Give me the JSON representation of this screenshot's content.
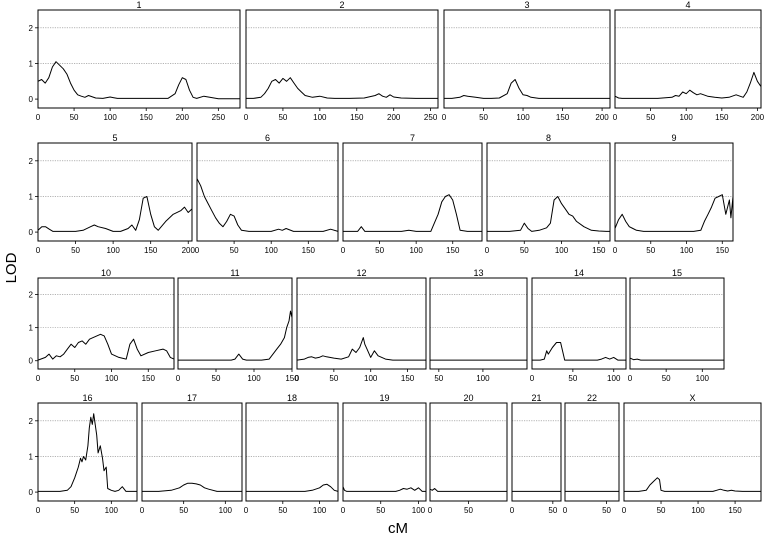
{
  "chart_data": {
    "type": "line",
    "xlabel": "cM",
    "ylabel": "LOD",
    "ylim": [
      -0.25,
      2.5
    ],
    "y_ticks": [
      0,
      1,
      2
    ],
    "grid": "horizontal dotted at LOD 1 and 2",
    "panels": [
      {
        "title": "1",
        "xlim": [
          0,
          280
        ],
        "x_ticks": [
          50,
          100,
          150,
          200,
          250
        ],
        "x": [
          0,
          5,
          10,
          15,
          20,
          25,
          30,
          35,
          40,
          45,
          50,
          55,
          60,
          65,
          70,
          80,
          90,
          100,
          105,
          110,
          120,
          140,
          160,
          180,
          190,
          195,
          200,
          205,
          210,
          215,
          220,
          230,
          250,
          270,
          280
        ],
        "y": [
          0.5,
          0.55,
          0.45,
          0.6,
          0.9,
          1.05,
          0.95,
          0.85,
          0.7,
          0.45,
          0.25,
          0.12,
          0.08,
          0.05,
          0.1,
          0.03,
          0.02,
          0.06,
          0.04,
          0.02,
          0.02,
          0.02,
          0.02,
          0.02,
          0.15,
          0.4,
          0.6,
          0.55,
          0.25,
          0.05,
          0.02,
          0.08,
          0.01,
          0.01,
          0.01
        ]
      },
      {
        "title": "2",
        "xlim": [
          0,
          260
        ],
        "x_ticks": [
          50,
          100,
          150,
          200,
          250
        ],
        "x": [
          0,
          10,
          20,
          25,
          30,
          35,
          40,
          45,
          50,
          55,
          60,
          65,
          70,
          75,
          80,
          90,
          100,
          110,
          120,
          140,
          160,
          175,
          180,
          185,
          190,
          195,
          200,
          210,
          230,
          250,
          260
        ],
        "y": [
          0.02,
          0.02,
          0.05,
          0.15,
          0.3,
          0.5,
          0.55,
          0.45,
          0.58,
          0.5,
          0.6,
          0.45,
          0.3,
          0.2,
          0.1,
          0.05,
          0.08,
          0.03,
          0.02,
          0.02,
          0.03,
          0.1,
          0.15,
          0.08,
          0.05,
          0.12,
          0.06,
          0.03,
          0.02,
          0.02,
          0.02
        ]
      },
      {
        "title": "3",
        "xlim": [
          0,
          210
        ],
        "x_ticks": [
          50,
          100,
          150,
          200
        ],
        "x": [
          0,
          10,
          20,
          25,
          30,
          40,
          50,
          60,
          70,
          80,
          85,
          90,
          95,
          100,
          105,
          110,
          120,
          140,
          160,
          180,
          200,
          210
        ],
        "y": [
          0.02,
          0.02,
          0.05,
          0.1,
          0.08,
          0.05,
          0.02,
          0.02,
          0.03,
          0.15,
          0.45,
          0.55,
          0.3,
          0.12,
          0.1,
          0.05,
          0.02,
          0.02,
          0.02,
          0.02,
          0.02,
          0.02
        ]
      },
      {
        "title": "4",
        "xlim": [
          0,
          205
        ],
        "x_ticks": [
          50,
          100,
          150,
          200
        ],
        "x": [
          0,
          5,
          10,
          20,
          40,
          60,
          80,
          85,
          90,
          95,
          100,
          105,
          110,
          115,
          120,
          130,
          140,
          150,
          160,
          170,
          180,
          185,
          190,
          195,
          200,
          205
        ],
        "y": [
          0.08,
          0.03,
          0.02,
          0.02,
          0.02,
          0.02,
          0.05,
          0.1,
          0.08,
          0.2,
          0.15,
          0.25,
          0.18,
          0.12,
          0.15,
          0.08,
          0.05,
          0.03,
          0.05,
          0.12,
          0.05,
          0.2,
          0.45,
          0.75,
          0.5,
          0.35
        ]
      },
      {
        "title": "5",
        "xlim": [
          0,
          205
        ],
        "x_ticks": [
          50,
          100,
          150,
          200
        ],
        "x": [
          0,
          5,
          10,
          15,
          20,
          30,
          50,
          60,
          70,
          75,
          80,
          90,
          100,
          110,
          120,
          125,
          130,
          135,
          140,
          145,
          150,
          155,
          160,
          170,
          180,
          190,
          195,
          200,
          205
        ],
        "y": [
          0.05,
          0.15,
          0.15,
          0.08,
          0.02,
          0.02,
          0.02,
          0.05,
          0.15,
          0.2,
          0.15,
          0.1,
          0.02,
          0.02,
          0.1,
          0.2,
          0.05,
          0.35,
          0.95,
          1.0,
          0.5,
          0.15,
          0.05,
          0.3,
          0.5,
          0.6,
          0.7,
          0.55,
          0.65
        ]
      },
      {
        "title": "6",
        "xlim": [
          0,
          190
        ],
        "x_ticks": [
          50,
          100,
          150
        ],
        "x": [
          0,
          5,
          10,
          15,
          20,
          25,
          30,
          35,
          40,
          45,
          50,
          55,
          60,
          70,
          80,
          100,
          110,
          115,
          120,
          130,
          150,
          170,
          180,
          190
        ],
        "y": [
          1.5,
          1.3,
          1.0,
          0.8,
          0.6,
          0.4,
          0.25,
          0.15,
          0.3,
          0.5,
          0.45,
          0.2,
          0.05,
          0.02,
          0.02,
          0.02,
          0.08,
          0.05,
          0.1,
          0.02,
          0.02,
          0.02,
          0.08,
          0.02
        ]
      },
      {
        "title": "7",
        "xlim": [
          0,
          190
        ],
        "x_ticks": [
          50,
          100,
          150
        ],
        "x": [
          0,
          10,
          20,
          25,
          30,
          40,
          60,
          80,
          90,
          100,
          110,
          120,
          130,
          135,
          140,
          145,
          150,
          155,
          160,
          170,
          180,
          190
        ],
        "y": [
          0.02,
          0.02,
          0.02,
          0.15,
          0.02,
          0.02,
          0.02,
          0.02,
          0.05,
          0.02,
          0.02,
          0.02,
          0.5,
          0.85,
          1.0,
          1.05,
          0.9,
          0.5,
          0.05,
          0.02,
          0.02,
          0.02
        ]
      },
      {
        "title": "8",
        "xlim": [
          0,
          165
        ],
        "x_ticks": [
          50,
          100,
          150
        ],
        "x": [
          0,
          10,
          30,
          45,
          50,
          55,
          60,
          70,
          80,
          85,
          90,
          95,
          100,
          105,
          110,
          115,
          120,
          130,
          140,
          150,
          160,
          165
        ],
        "y": [
          0.02,
          0.02,
          0.02,
          0.05,
          0.25,
          0.1,
          0.02,
          0.05,
          0.12,
          0.25,
          0.9,
          1.0,
          0.8,
          0.65,
          0.5,
          0.45,
          0.3,
          0.15,
          0.05,
          0.03,
          0.02,
          0.02
        ]
      },
      {
        "title": "9",
        "xlim": [
          0,
          165
        ],
        "x_ticks": [
          50,
          100,
          150
        ],
        "x": [
          0,
          5,
          10,
          15,
          20,
          25,
          30,
          40,
          60,
          80,
          100,
          110,
          120,
          125,
          130,
          135,
          140,
          145,
          150,
          155,
          160,
          162,
          165
        ],
        "y": [
          0.1,
          0.35,
          0.5,
          0.3,
          0.15,
          0.1,
          0.05,
          0.02,
          0.02,
          0.02,
          0.02,
          0.02,
          0.05,
          0.3,
          0.5,
          0.7,
          0.95,
          1.0,
          1.05,
          0.5,
          0.9,
          0.4,
          1.0
        ]
      },
      {
        "title": "10",
        "xlim": [
          0,
          185
        ],
        "x_ticks": [
          50,
          100,
          150
        ],
        "x": [
          0,
          10,
          15,
          20,
          25,
          30,
          35,
          40,
          45,
          50,
          55,
          60,
          65,
          70,
          75,
          80,
          85,
          90,
          95,
          100,
          110,
          120,
          125,
          130,
          135,
          140,
          150,
          160,
          170,
          175,
          180,
          185
        ],
        "y": [
          0.02,
          0.1,
          0.2,
          0.05,
          0.15,
          0.12,
          0.2,
          0.35,
          0.5,
          0.4,
          0.55,
          0.6,
          0.5,
          0.65,
          0.7,
          0.75,
          0.8,
          0.75,
          0.5,
          0.2,
          0.1,
          0.05,
          0.5,
          0.65,
          0.35,
          0.15,
          0.25,
          0.3,
          0.35,
          0.3,
          0.1,
          0.05
        ]
      },
      {
        "title": "11",
        "xlim": [
          0,
          150
        ],
        "x_ticks": [
          50,
          100,
          150
        ],
        "x": [
          0,
          20,
          40,
          60,
          70,
          75,
          80,
          85,
          90,
          100,
          110,
          120,
          125,
          130,
          135,
          140,
          143,
          146,
          148,
          150
        ],
        "y": [
          0.02,
          0.02,
          0.02,
          0.02,
          0.02,
          0.05,
          0.2,
          0.05,
          0.02,
          0.02,
          0.02,
          0.05,
          0.2,
          0.35,
          0.5,
          0.7,
          1.0,
          1.2,
          1.5,
          1.3
        ]
      },
      {
        "title": "12",
        "xlim": [
          0,
          175
        ],
        "x_ticks": [
          50,
          100,
          150
        ],
        "x": [
          0,
          10,
          15,
          20,
          25,
          30,
          35,
          40,
          50,
          60,
          70,
          75,
          80,
          85,
          90,
          92,
          95,
          100,
          105,
          110,
          115,
          120,
          130,
          150,
          170,
          175
        ],
        "y": [
          0.02,
          0.05,
          0.1,
          0.12,
          0.08,
          0.1,
          0.15,
          0.12,
          0.08,
          0.05,
          0.12,
          0.35,
          0.25,
          0.4,
          0.7,
          0.5,
          0.35,
          0.1,
          0.3,
          0.15,
          0.1,
          0.05,
          0.02,
          0.02,
          0.02,
          0.02
        ]
      },
      {
        "title": "13",
        "xlim": [
          40,
          150
        ],
        "x_ticks": [
          50,
          100
        ],
        "x": [
          40,
          60,
          80,
          100,
          120,
          150
        ],
        "y": [
          0.02,
          0.02,
          0.02,
          0.02,
          0.02,
          0.02
        ]
      },
      {
        "title": "14",
        "xlim": [
          0,
          115
        ],
        "x_ticks": [
          50,
          100
        ],
        "x": [
          0,
          10,
          15,
          18,
          20,
          25,
          30,
          35,
          40,
          45,
          50,
          60,
          70,
          80,
          85,
          90,
          95,
          100,
          105,
          110,
          115
        ],
        "y": [
          0.02,
          0.02,
          0.05,
          0.3,
          0.2,
          0.4,
          0.55,
          0.55,
          0.02,
          0.02,
          0.02,
          0.02,
          0.02,
          0.02,
          0.05,
          0.1,
          0.05,
          0.1,
          0.02,
          0.02,
          0.02
        ]
      },
      {
        "title": "15",
        "xlim": [
          0,
          130
        ],
        "x_ticks": [
          50,
          100
        ],
        "x": [
          0,
          5,
          10,
          15,
          20,
          40,
          60,
          80,
          100,
          120,
          130
        ],
        "y": [
          0.08,
          0.03,
          0.05,
          0.02,
          0.02,
          0.02,
          0.02,
          0.02,
          0.02,
          0.02,
          0.02
        ]
      },
      {
        "title": "16",
        "xlim": [
          0,
          135
        ],
        "x_ticks": [
          50,
          100
        ],
        "x": [
          0,
          20,
          30,
          40,
          45,
          50,
          55,
          58,
          60,
          62,
          65,
          68,
          70,
          72,
          74,
          76,
          78,
          80,
          82,
          85,
          88,
          90,
          93,
          95,
          100,
          105,
          110,
          115,
          120,
          135
        ],
        "y": [
          0.02,
          0.02,
          0.02,
          0.05,
          0.15,
          0.4,
          0.7,
          0.95,
          0.85,
          1.0,
          0.9,
          1.3,
          1.8,
          2.1,
          1.9,
          2.2,
          1.9,
          1.6,
          1.1,
          1.3,
          0.95,
          0.6,
          0.7,
          0.1,
          0.05,
          0.02,
          0.05,
          0.15,
          0.02,
          0.02
        ]
      },
      {
        "title": "17",
        "xlim": [
          0,
          120
        ],
        "x_ticks": [
          50,
          100
        ],
        "x": [
          0,
          20,
          35,
          45,
          50,
          55,
          60,
          65,
          70,
          75,
          80,
          90,
          100,
          110,
          120
        ],
        "y": [
          0.02,
          0.02,
          0.05,
          0.12,
          0.2,
          0.25,
          0.25,
          0.23,
          0.2,
          0.12,
          0.08,
          0.02,
          0.02,
          0.02,
          0.02
        ]
      },
      {
        "title": "18",
        "xlim": [
          0,
          125
        ],
        "x_ticks": [
          50,
          100
        ],
        "x": [
          0,
          20,
          40,
          60,
          80,
          90,
          100,
          105,
          110,
          115,
          120,
          125
        ],
        "y": [
          0.02,
          0.02,
          0.02,
          0.02,
          0.02,
          0.05,
          0.12,
          0.2,
          0.22,
          0.15,
          0.05,
          0.02
        ]
      },
      {
        "title": "19",
        "xlim": [
          0,
          110
        ],
        "x_ticks": [
          50,
          100
        ],
        "x": [
          0,
          2,
          5,
          20,
          40,
          60,
          70,
          75,
          80,
          85,
          90,
          95,
          100,
          105,
          110
        ],
        "y": [
          0.15,
          0.05,
          0.02,
          0.02,
          0.02,
          0.02,
          0.02,
          0.05,
          0.1,
          0.08,
          0.12,
          0.05,
          0.12,
          0.02,
          0.02
        ]
      },
      {
        "title": "20",
        "xlim": [
          0,
          100
        ],
        "x_ticks": [
          50
        ],
        "x": [
          0,
          3,
          6,
          10,
          20,
          40,
          60,
          80,
          100
        ],
        "y": [
          0.08,
          0.05,
          0.1,
          0.02,
          0.02,
          0.02,
          0.02,
          0.02,
          0.02
        ]
      },
      {
        "title": "21",
        "xlim": [
          0,
          60
        ],
        "x_ticks": [
          50
        ],
        "x": [
          0,
          20,
          40,
          60
        ],
        "y": [
          0.02,
          0.02,
          0.02,
          0.02
        ]
      },
      {
        "title": "22",
        "xlim": [
          0,
          65
        ],
        "x_ticks": [
          50
        ],
        "x": [
          0,
          20,
          40,
          65
        ],
        "y": [
          0.02,
          0.02,
          0.02,
          0.02
        ]
      },
      {
        "title": "X",
        "xlim": [
          0,
          185
        ],
        "x_ticks": [
          50,
          100,
          150
        ],
        "x": [
          0,
          10,
          20,
          30,
          35,
          40,
          45,
          48,
          50,
          55,
          60,
          80,
          100,
          120,
          125,
          130,
          135,
          140,
          145,
          150,
          160,
          170,
          185
        ],
        "y": [
          0.02,
          0.02,
          0.02,
          0.05,
          0.2,
          0.3,
          0.4,
          0.35,
          0.05,
          0.02,
          0.02,
          0.02,
          0.02,
          0.02,
          0.05,
          0.08,
          0.05,
          0.03,
          0.05,
          0.03,
          0.02,
          0.02,
          0.02
        ]
      }
    ]
  }
}
